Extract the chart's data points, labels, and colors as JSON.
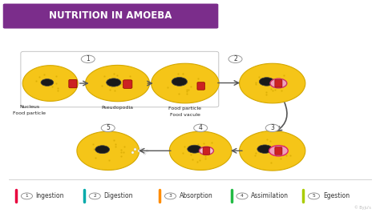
{
  "title": "NUTRITION IN AMOEBA",
  "title_bg": "#7B2D8B",
  "title_color": "#FFFFFF",
  "bg_color": "#FFFFFF",
  "amoeba_color": "#F5C518",
  "amoeba_dark": "#D4A800",
  "nucleus_color": "#1a1a1a",
  "food_particle_color": "#CC2222",
  "vacuole_color_outer": "#F0A0BC",
  "vacuole_color_inner": "#CC3366",
  "legend_items": [
    {
      "num": "1",
      "label": "Ingestion",
      "color": "#E8003D"
    },
    {
      "num": "2",
      "label": "Digestion",
      "color": "#00AAAA"
    },
    {
      "num": "3",
      "label": "Absorption",
      "color": "#FF8C00"
    },
    {
      "num": "4",
      "label": "Assimilation",
      "color": "#22BB44"
    },
    {
      "num": "5",
      "label": "Egestion",
      "color": "#AACC00"
    }
  ]
}
